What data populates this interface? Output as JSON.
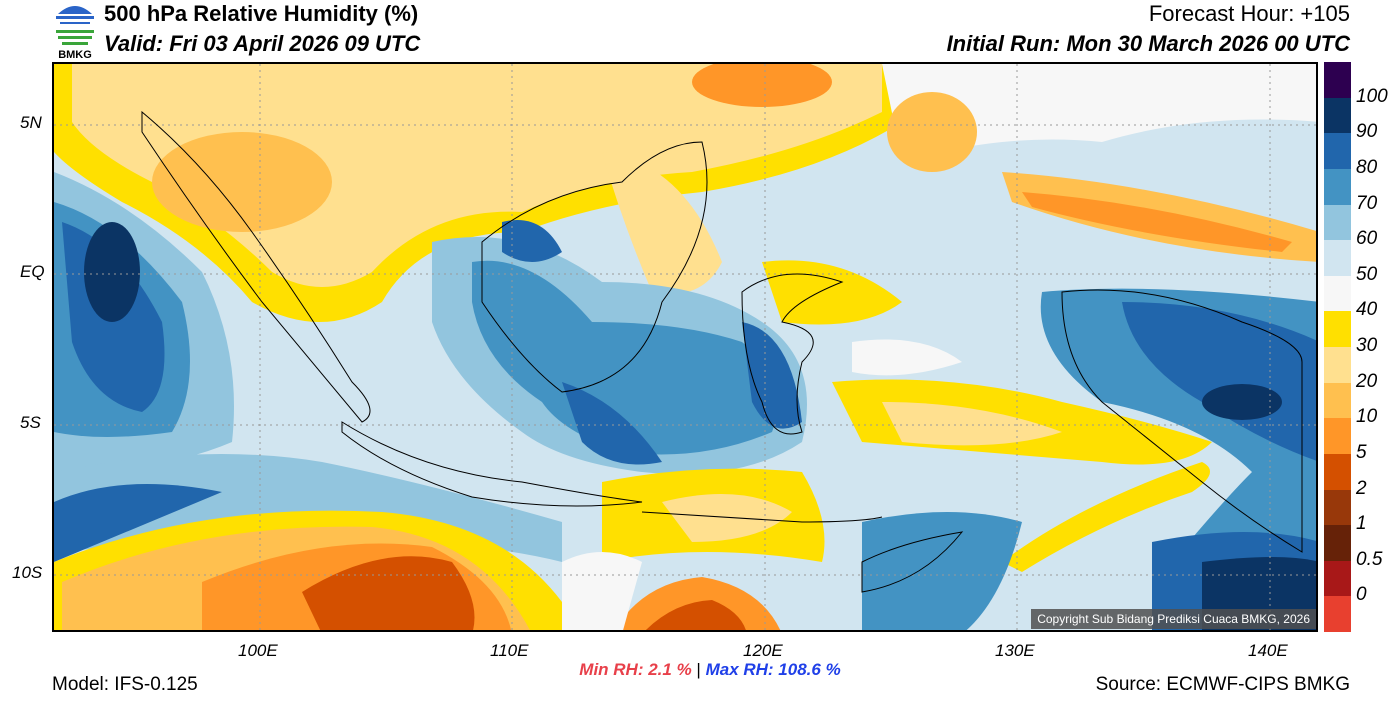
{
  "header": {
    "title": "500 hPa Relative Humidity (%)",
    "valid": "Valid: Fri 03 April 2026 09 UTC",
    "forecast_hour": "Forecast Hour: +105",
    "initial_run": "Initial Run: Mon 30 March 2026 00 UTC",
    "logo_text": "BMKG"
  },
  "axes": {
    "lon_ticks": [
      "100E",
      "110E",
      "120E",
      "130E",
      "140E"
    ],
    "lat_ticks": [
      "5N",
      "EQ",
      "5S",
      "10S"
    ]
  },
  "colorbar": {
    "labels": [
      "100",
      "90",
      "80",
      "70",
      "60",
      "50",
      "40",
      "30",
      "20",
      "10",
      "5",
      "2",
      "1",
      "0.5",
      "0"
    ],
    "colors": [
      "#2d0050",
      "#0b3464",
      "#2166ac",
      "#4393c3",
      "#92c5de",
      "#d1e5f0",
      "#f7f7f7",
      "#ffe000",
      "#ffe08f",
      "#ffc04f",
      "#ff9628",
      "#d45000",
      "#98380a",
      "#662208",
      "#a81818",
      "#e8402f"
    ]
  },
  "stats": {
    "min": "Min RH:   2.1 %",
    "sep": "|",
    "max": "Max RH: 108.6 %"
  },
  "footer": {
    "model": "Model: IFS-0.125",
    "source": "Source: ECMWF-CIPS BMKG",
    "copyright": "Copyright Sub Bidang Prediksi Cuaca BMKG, 2026"
  }
}
